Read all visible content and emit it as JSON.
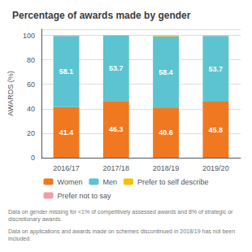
{
  "chart_data": {
    "type": "bar",
    "title": "Percentage of awards made by gender",
    "ylabel": "AWARDS (%)",
    "categories": [
      "2016/17",
      "2017/18",
      "2018/19",
      "2019/20"
    ],
    "series": [
      {
        "name": "Women",
        "color": "#F07820",
        "values": [
          41.4,
          46.3,
          40.6,
          45.8
        ],
        "data_labels": true
      },
      {
        "name": "Men",
        "color": "#5BC4D0",
        "values": [
          58.1,
          53.7,
          58.4,
          53.7
        ],
        "data_labels": true
      },
      {
        "name": "Prefer to self describe",
        "color": "#F5C200",
        "values": [
          0.0,
          0.0,
          0.5,
          0.0
        ]
      },
      {
        "name": "Prefer not to say",
        "color": "#EF9EA8",
        "values": [
          0.5,
          0.0,
          0.5,
          0.5
        ]
      }
    ],
    "stacked": true,
    "ylim": [
      0,
      105
    ],
    "yticks": [
      0,
      20,
      40,
      60,
      80,
      100
    ],
    "grid": true,
    "legend": "bottom",
    "annotations": [
      "Data on gender missing for <1% of competitively assessed awards and 8% of strategic or discretionary awards.",
      "Data on applications and awards made on schemes discontinued in 2018/19 has not been included."
    ]
  }
}
